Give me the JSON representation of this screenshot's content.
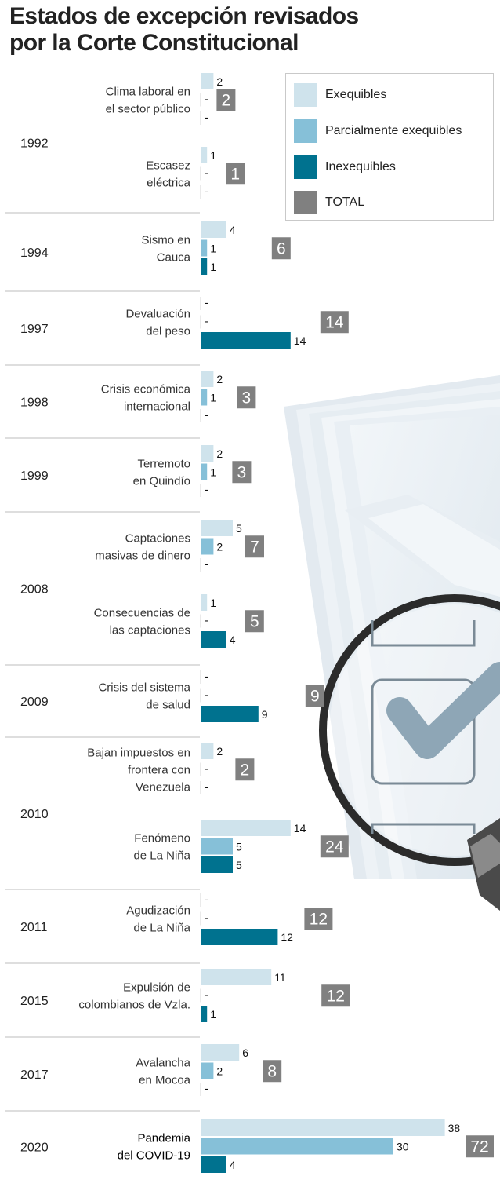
{
  "title": "Estados de excepción revisados por la Corte Constitucional",
  "colors": {
    "exequibles": "#cfe3ec",
    "parcial": "#86c0d8",
    "inexequibles": "#00728f",
    "total": "#808080",
    "separator": "#bcbcbc"
  },
  "legend": [
    {
      "label": "Exequibles",
      "color": "#cfe3ec"
    },
    {
      "label": "Parcialmente exequibles",
      "color": "#86c0d8"
    },
    {
      "label": "Inexequibles",
      "color": "#00728f"
    },
    {
      "label": "TOTAL",
      "color": "#808080"
    }
  ],
  "decoration": {
    "icon": "magnifying-glass-checkmark-on-documents"
  },
  "chart_data": {
    "type": "bar",
    "orientation": "horizontal",
    "series": [
      "Exequibles",
      "Parcialmente exequibles",
      "Inexequibles"
    ],
    "missing_value_label": "-",
    "groups": [
      {
        "year": "1992",
        "events": [
          {
            "label": [
              "Clima laboral en",
              "el sector público"
            ],
            "exequibles": 2,
            "parcial": null,
            "inexequibles": null,
            "total": 2
          },
          {
            "label": [
              "Escasez",
              "eléctrica"
            ],
            "exequibles": 1,
            "parcial": null,
            "inexequibles": null,
            "total": 1
          }
        ]
      },
      {
        "year": "1994",
        "events": [
          {
            "label": [
              "Sismo en",
              "Cauca"
            ],
            "exequibles": 4,
            "parcial": 1,
            "inexequibles": 1,
            "total": 6
          }
        ]
      },
      {
        "year": "1997",
        "events": [
          {
            "label": [
              "Devaluación",
              "del peso"
            ],
            "exequibles": null,
            "parcial": null,
            "inexequibles": 14,
            "total": 14
          }
        ]
      },
      {
        "year": "1998",
        "events": [
          {
            "label": [
              "Crisis económica",
              "internacional"
            ],
            "exequibles": 2,
            "parcial": 1,
            "inexequibles": null,
            "total": 3
          }
        ]
      },
      {
        "year": "1999",
        "events": [
          {
            "label": [
              "Terremoto",
              "en Quindío"
            ],
            "exequibles": 2,
            "parcial": 1,
            "inexequibles": null,
            "total": 3
          }
        ]
      },
      {
        "year": "2008",
        "events": [
          {
            "label": [
              "Captaciones",
              "masivas de dinero"
            ],
            "exequibles": 5,
            "parcial": 2,
            "inexequibles": null,
            "total": 7
          },
          {
            "label": [
              "Consecuencias de",
              "las captaciones"
            ],
            "exequibles": 1,
            "parcial": null,
            "inexequibles": 4,
            "total": 5
          }
        ]
      },
      {
        "year": "2009",
        "events": [
          {
            "label": [
              "Crisis del sistema",
              "de salud"
            ],
            "exequibles": null,
            "parcial": null,
            "inexequibles": 9,
            "total": 9
          }
        ]
      },
      {
        "year": "2010",
        "events": [
          {
            "label": [
              "Bajan impuestos en",
              "frontera con",
              "Venezuela"
            ],
            "exequibles": 2,
            "parcial": null,
            "inexequibles": null,
            "total": 2
          },
          {
            "label": [
              "Fenómeno",
              "de La Niña"
            ],
            "exequibles": 14,
            "parcial": 5,
            "inexequibles": 5,
            "total": 24
          }
        ]
      },
      {
        "year": "2011",
        "events": [
          {
            "label": [
              "Agudización",
              "de La Niña"
            ],
            "exequibles": null,
            "parcial": null,
            "inexequibles": 12,
            "total": 12
          }
        ]
      },
      {
        "year": "2015",
        "events": [
          {
            "label": [
              "Expulsión de",
              "colombianos de Vzla."
            ],
            "exequibles": 11,
            "parcial": null,
            "inexequibles": 1,
            "total": 12
          }
        ]
      },
      {
        "year": "2017",
        "events": [
          {
            "label": [
              "Avalancha",
              "en Mocoa"
            ],
            "exequibles": 6,
            "parcial": 2,
            "inexequibles": null,
            "total": 8
          }
        ]
      },
      {
        "year": "2020",
        "events": [
          {
            "label": [
              "Pandemia",
              "del COVID-19"
            ],
            "exequibles": 38,
            "parcial": 30,
            "inexequibles": 4,
            "total": 72
          }
        ]
      }
    ]
  }
}
